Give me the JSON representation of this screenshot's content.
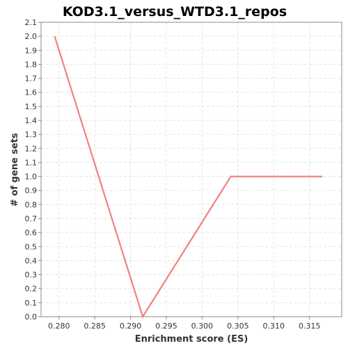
{
  "chart_data": {
    "type": "line",
    "title": "KOD3.1_versus_WTD3.1_repos",
    "xlabel": "Enrichment score (ES)",
    "ylabel": "# of gene sets",
    "xlim": [
      0.2775,
      0.3195
    ],
    "ylim": [
      0,
      2.1
    ],
    "x_ticks": [
      0.28,
      0.285,
      0.29,
      0.295,
      0.3,
      0.305,
      0.31,
      0.315
    ],
    "x_tick_labels": [
      "0.280",
      "0.285",
      "0.290",
      "0.295",
      "0.300",
      "0.305",
      "0.310",
      "0.315"
    ],
    "y_ticks": [
      0.0,
      0.1,
      0.2,
      0.3,
      0.4,
      0.5,
      0.6,
      0.7,
      0.8,
      0.9,
      1.0,
      1.1,
      1.2,
      1.3,
      1.4,
      1.5,
      1.6,
      1.7,
      1.8,
      1.9,
      2.0,
      2.1
    ],
    "y_tick_labels": [
      "0.0",
      "0.1",
      "0.2",
      "0.3",
      "0.4",
      "0.5",
      "0.6",
      "0.7",
      "0.8",
      "0.9",
      "1.0",
      "1.1",
      "1.2",
      "1.3",
      "1.4",
      "1.5",
      "1.6",
      "1.7",
      "1.8",
      "1.9",
      "2.0",
      "2.1"
    ],
    "grid": true,
    "series": [
      {
        "color": "#f08080",
        "x": [
          0.2794,
          0.2917,
          0.304,
          0.3168
        ],
        "y": [
          2.0,
          0.0,
          1.0,
          1.0
        ]
      }
    ]
  }
}
